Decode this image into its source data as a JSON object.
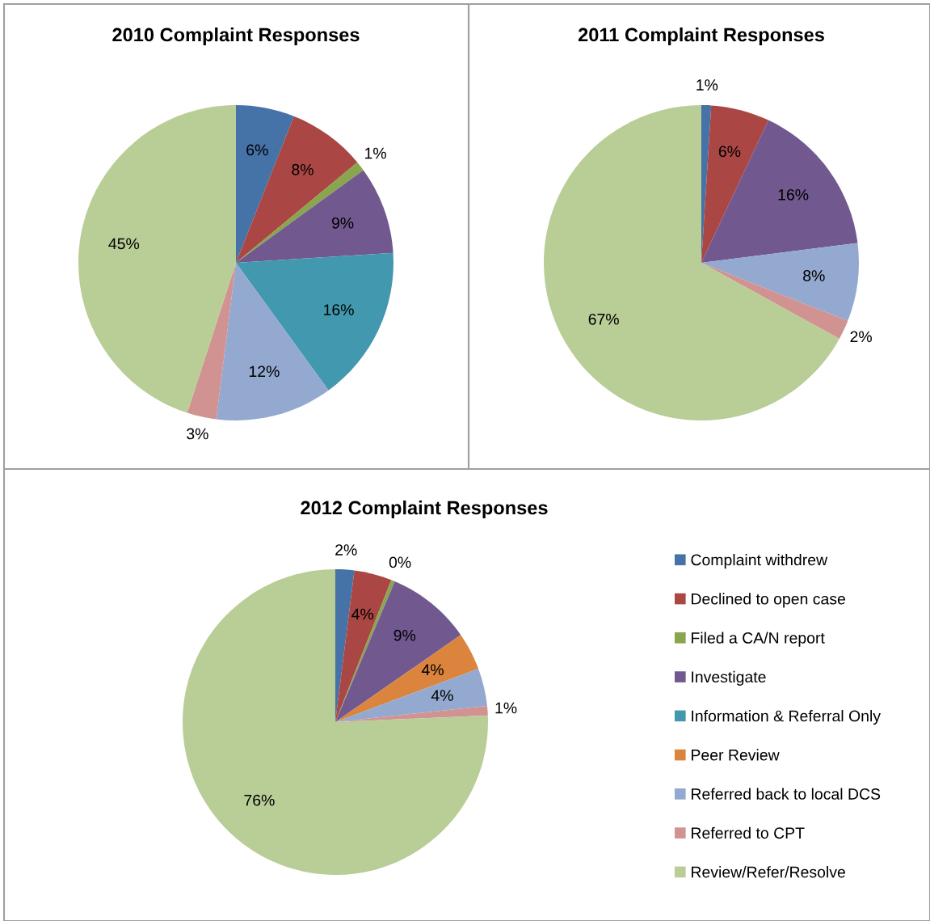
{
  "chart_data": [
    {
      "type": "pie",
      "title": "2010 Complaint Responses",
      "categories": [
        null,
        null,
        null,
        null,
        null,
        null,
        null,
        null
      ],
      "values": [
        6,
        8,
        1,
        9,
        16,
        12,
        3,
        45
      ],
      "value_labels": [
        "6%",
        "8%",
        "1%",
        "9%",
        "16%",
        "12%",
        "3%",
        "45%"
      ],
      "colors": [
        "#4572a7",
        "#aa4643",
        "#89a54e",
        "#71588f",
        "#4198af",
        "#93a9cf",
        "#d19392",
        "#b9cd96"
      ]
    },
    {
      "type": "pie",
      "title": "2011 Complaint Responses",
      "categories": [
        null,
        null,
        null,
        null,
        null,
        null
      ],
      "values": [
        1,
        6,
        16,
        8,
        2,
        67
      ],
      "value_labels": [
        "1%",
        "6%",
        "16%",
        "8%",
        "2%",
        "67%"
      ],
      "colors": [
        "#4572a7",
        "#aa4643",
        "#71588f",
        "#93a9cf",
        "#d19392",
        "#b9cd96"
      ]
    },
    {
      "type": "pie",
      "title": "2012 Complaint Responses",
      "categories": [
        "Complaint withdrew",
        "Declined to open case",
        "Filed a CA/N report",
        "Investigate",
        "Information & Referral Only",
        "Peer Review",
        "Referred back to local DCS",
        "Referred to CPT",
        "Review/Refer/Resolve"
      ],
      "values": [
        2,
        4,
        0.4,
        9,
        null,
        4,
        4,
        1,
        76
      ],
      "value_labels": [
        "2%",
        "4%",
        "0%",
        "9%",
        null,
        "4%",
        "4%",
        "1%",
        "76%"
      ],
      "colors": [
        "#4572a7",
        "#aa4643",
        "#89a54e",
        "#71588f",
        "#4198af",
        "#db843d",
        "#93a9cf",
        "#d19392",
        "#b9cd96"
      ],
      "legend": "right"
    }
  ]
}
